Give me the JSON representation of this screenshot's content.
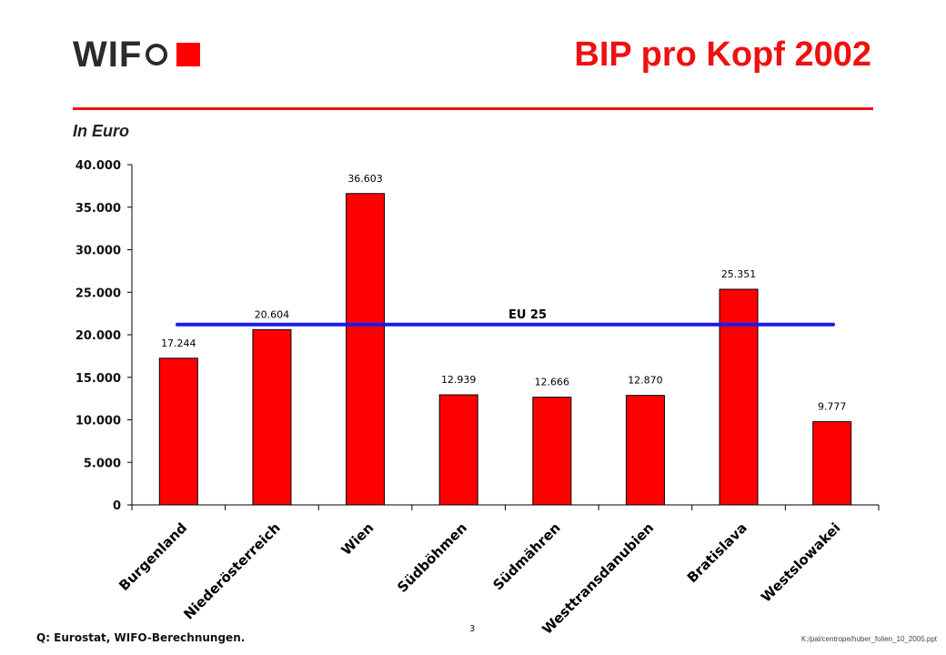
{
  "header": {
    "logo_text": "WIF",
    "title": "BIP pro Kopf 2002",
    "subtitle": "In Euro"
  },
  "footer": {
    "source": "Q: Eurostat, WIFO-Berechnungen.",
    "page_number": "3",
    "file_path": "K:/pal/centrope/huber_folien_10_2005.ppt"
  },
  "colors": {
    "accent": "#ee1111",
    "bar": "#ff0000",
    "reference_line": "#1a1aee"
  },
  "chart_data": {
    "type": "bar",
    "categories": [
      "Burgenland",
      "Niederösterreich",
      "Wien",
      "Südböhmen",
      "Südmähren",
      "Westtransdanubien",
      "Bratislava",
      "Westslowakei"
    ],
    "values": [
      17244,
      20604,
      36603,
      12939,
      12666,
      12870,
      25351,
      9777
    ],
    "value_labels": [
      "17.244",
      "20.604",
      "36.603",
      "12.939",
      "12.666",
      "12.870",
      "25.351",
      "9.777"
    ],
    "ylim": [
      0,
      40000
    ],
    "yticks": [
      0,
      5000,
      10000,
      15000,
      20000,
      25000,
      30000,
      35000,
      40000
    ],
    "ytick_labels": [
      "0",
      "5.000",
      "10.000",
      "15.000",
      "20.000",
      "25.000",
      "30.000",
      "35.000",
      "40.000"
    ],
    "reference_line": {
      "label": "EU 25",
      "value": 21200
    },
    "grid": false,
    "legend": "none"
  }
}
